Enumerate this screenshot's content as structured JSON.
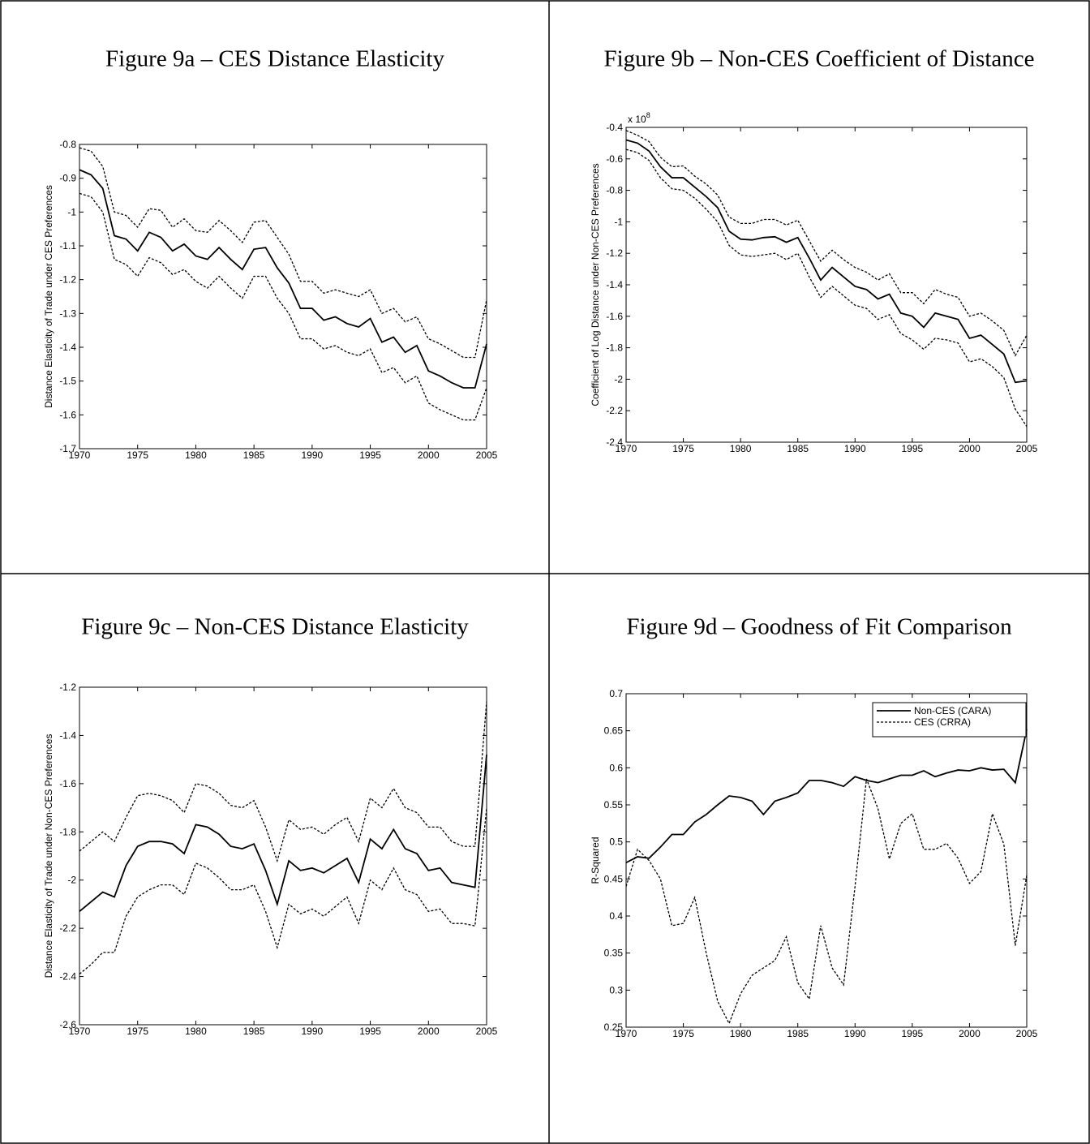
{
  "chart_data": [
    {
      "type": "line",
      "title": "Figure 9a – CES Distance Elasticity",
      "ylabel": "Distance Elasticity of Trade under CES Preferences",
      "x": [
        1970,
        1971,
        1972,
        1973,
        1974,
        1975,
        1976,
        1977,
        1978,
        1979,
        1980,
        1981,
        1982,
        1983,
        1984,
        1985,
        1986,
        1987,
        1988,
        1989,
        1990,
        1991,
        1992,
        1993,
        1994,
        1995,
        1996,
        1997,
        1998,
        1999,
        2000,
        2001,
        2002,
        2003,
        2004,
        2005
      ],
      "xlim": [
        1970,
        2005
      ],
      "xticks": [
        1970,
        1975,
        1980,
        1985,
        1990,
        1995,
        2000,
        2005
      ],
      "ylim": [
        -1.7,
        -0.8
      ],
      "yticks": [
        -0.8,
        -0.9,
        -1,
        -1.1,
        -1.2,
        -1.3,
        -1.4,
        -1.5,
        -1.6,
        -1.7
      ],
      "series": [
        {
          "color": "#000000",
          "style": "solid",
          "values": [
            -0.875,
            -0.89,
            -0.93,
            -1.07,
            -1.08,
            -1.115,
            -1.06,
            -1.075,
            -1.115,
            -1.095,
            -1.13,
            -1.14,
            -1.105,
            -1.14,
            -1.17,
            -1.11,
            -1.105,
            -1.165,
            -1.21,
            -1.285,
            -1.285,
            -1.32,
            -1.31,
            -1.33,
            -1.34,
            -1.315,
            -1.385,
            -1.37,
            -1.415,
            -1.395,
            -1.47,
            -1.485,
            -1.505,
            -1.52,
            -1.52,
            -1.39
          ]
        },
        {
          "color": "#000000",
          "style": "dashed",
          "values": [
            -0.81,
            -0.82,
            -0.865,
            -1.0,
            -1.01,
            -1.045,
            -0.99,
            -0.995,
            -1.045,
            -1.02,
            -1.055,
            -1.06,
            -1.025,
            -1.055,
            -1.09,
            -1.03,
            -1.025,
            -1.075,
            -1.125,
            -1.205,
            -1.205,
            -1.24,
            -1.23,
            -1.24,
            -1.25,
            -1.23,
            -1.3,
            -1.285,
            -1.325,
            -1.31,
            -1.375,
            -1.39,
            -1.41,
            -1.43,
            -1.43,
            -1.26
          ]
        },
        {
          "color": "#000000",
          "style": "dashed",
          "values": [
            -0.945,
            -0.955,
            -1.0,
            -1.14,
            -1.155,
            -1.19,
            -1.135,
            -1.15,
            -1.185,
            -1.17,
            -1.205,
            -1.225,
            -1.19,
            -1.225,
            -1.255,
            -1.19,
            -1.19,
            -1.255,
            -1.3,
            -1.375,
            -1.375,
            -1.405,
            -1.395,
            -1.415,
            -1.425,
            -1.405,
            -1.475,
            -1.46,
            -1.505,
            -1.485,
            -1.565,
            -1.585,
            -1.6,
            -1.615,
            -1.615,
            -1.52
          ]
        }
      ]
    },
    {
      "type": "line",
      "title": "Figure 9b – Non-CES Coefficient of Distance",
      "ylabel": "Coefficient of Log Distance under Non-CES Preferences",
      "multiplier": "x 10",
      "multiplier_exponent": "8",
      "x": [
        1970,
        1971,
        1972,
        1973,
        1974,
        1975,
        1976,
        1977,
        1978,
        1979,
        1980,
        1981,
        1982,
        1983,
        1984,
        1985,
        1986,
        1987,
        1988,
        1989,
        1990,
        1991,
        1992,
        1993,
        1994,
        1995,
        1996,
        1997,
        1998,
        1999,
        2000,
        2001,
        2002,
        2003,
        2004,
        2005
      ],
      "xlim": [
        1970,
        2005
      ],
      "xticks": [
        1970,
        1975,
        1980,
        1985,
        1990,
        1995,
        2000,
        2005
      ],
      "ylim": [
        -2.4,
        -0.4
      ],
      "yticks": [
        -0.4,
        -0.6,
        -0.8,
        -1,
        -1.2,
        -1.4,
        -1.6,
        -1.8,
        -2,
        -2.2,
        -2.4
      ],
      "series": [
        {
          "color": "#000000",
          "style": "solid",
          "values": [
            -0.48,
            -0.5,
            -0.55,
            -0.65,
            -0.72,
            -0.72,
            -0.78,
            -0.84,
            -0.91,
            -1.06,
            -1.11,
            -1.115,
            -1.1,
            -1.095,
            -1.13,
            -1.1,
            -1.23,
            -1.37,
            -1.29,
            -1.35,
            -1.41,
            -1.43,
            -1.49,
            -1.46,
            -1.58,
            -1.6,
            -1.67,
            -1.58,
            -1.6,
            -1.62,
            -1.74,
            -1.72,
            -1.78,
            -1.84,
            -2.02,
            -2.01
          ]
        },
        {
          "color": "#000000",
          "style": "dashed",
          "values": [
            -0.42,
            -0.45,
            -0.49,
            -0.59,
            -0.65,
            -0.645,
            -0.71,
            -0.76,
            -0.83,
            -0.97,
            -1.01,
            -1.01,
            -0.985,
            -0.985,
            -1.02,
            -0.99,
            -1.12,
            -1.25,
            -1.18,
            -1.24,
            -1.29,
            -1.32,
            -1.37,
            -1.33,
            -1.45,
            -1.45,
            -1.52,
            -1.43,
            -1.46,
            -1.48,
            -1.6,
            -1.58,
            -1.63,
            -1.69,
            -1.85,
            -1.72
          ]
        },
        {
          "color": "#000000",
          "style": "dashed",
          "values": [
            -0.54,
            -0.56,
            -0.61,
            -0.72,
            -0.79,
            -0.8,
            -0.85,
            -0.92,
            -1.0,
            -1.15,
            -1.21,
            -1.22,
            -1.21,
            -1.2,
            -1.24,
            -1.2,
            -1.35,
            -1.48,
            -1.41,
            -1.47,
            -1.53,
            -1.55,
            -1.62,
            -1.59,
            -1.71,
            -1.75,
            -1.81,
            -1.74,
            -1.75,
            -1.77,
            -1.89,
            -1.87,
            -1.92,
            -1.99,
            -2.19,
            -2.3
          ]
        }
      ]
    },
    {
      "type": "line",
      "title": "Figure 9c – Non-CES Distance Elasticity",
      "ylabel": "Distance Elasticity of Trade under Non-CES Preferences",
      "x": [
        1970,
        1971,
        1972,
        1973,
        1974,
        1975,
        1976,
        1977,
        1978,
        1979,
        1980,
        1981,
        1982,
        1983,
        1984,
        1985,
        1986,
        1987,
        1988,
        1989,
        1990,
        1991,
        1992,
        1993,
        1994,
        1995,
        1996,
        1997,
        1998,
        1999,
        2000,
        2001,
        2002,
        2003,
        2004,
        2005
      ],
      "xlim": [
        1970,
        2005
      ],
      "xticks": [
        1970,
        1975,
        1980,
        1985,
        1990,
        1995,
        2000,
        2005
      ],
      "ylim": [
        -2.6,
        -1.2
      ],
      "yticks": [
        -1.2,
        -1.4,
        -1.6,
        -1.8,
        -2,
        -2.2,
        -2.4,
        -2.6
      ],
      "series": [
        {
          "color": "#000000",
          "style": "solid",
          "values": [
            -2.13,
            -2.09,
            -2.05,
            -2.07,
            -1.94,
            -1.86,
            -1.84,
            -1.84,
            -1.85,
            -1.89,
            -1.77,
            -1.78,
            -1.81,
            -1.86,
            -1.87,
            -1.85,
            -1.96,
            -2.1,
            -1.92,
            -1.96,
            -1.95,
            -1.97,
            -1.94,
            -1.91,
            -2.01,
            -1.83,
            -1.87,
            -1.79,
            -1.87,
            -1.89,
            -1.96,
            -1.95,
            -2.01,
            -2.02,
            -2.03,
            -1.48
          ]
        },
        {
          "color": "#000000",
          "style": "dashed",
          "values": [
            -1.88,
            -1.84,
            -1.8,
            -1.84,
            -1.74,
            -1.65,
            -1.64,
            -1.65,
            -1.67,
            -1.72,
            -1.6,
            -1.61,
            -1.64,
            -1.69,
            -1.7,
            -1.67,
            -1.78,
            -1.92,
            -1.75,
            -1.79,
            -1.78,
            -1.81,
            -1.77,
            -1.74,
            -1.84,
            -1.66,
            -1.7,
            -1.62,
            -1.7,
            -1.72,
            -1.78,
            -1.78,
            -1.84,
            -1.86,
            -1.86,
            -1.26
          ]
        },
        {
          "color": "#000000",
          "style": "dashed",
          "values": [
            -2.39,
            -2.35,
            -2.3,
            -2.3,
            -2.15,
            -2.07,
            -2.04,
            -2.02,
            -2.02,
            -2.06,
            -1.93,
            -1.95,
            -1.99,
            -2.04,
            -2.04,
            -2.02,
            -2.13,
            -2.28,
            -2.1,
            -2.14,
            -2.12,
            -2.15,
            -2.11,
            -2.07,
            -2.18,
            -2.0,
            -2.04,
            -1.95,
            -2.04,
            -2.06,
            -2.13,
            -2.12,
            -2.18,
            -2.18,
            -2.19,
            -1.7
          ]
        }
      ]
    },
    {
      "type": "line",
      "title": "Figure 9d – Goodness of Fit Comparison",
      "ylabel": "R-Squared",
      "legend": "upper right",
      "x": [
        1970,
        1971,
        1972,
        1973,
        1974,
        1975,
        1976,
        1977,
        1978,
        1979,
        1980,
        1981,
        1982,
        1983,
        1984,
        1985,
        1986,
        1987,
        1988,
        1989,
        1990,
        1991,
        1992,
        1993,
        1994,
        1995,
        1996,
        1997,
        1998,
        1999,
        2000,
        2001,
        2002,
        2003,
        2004,
        2005
      ],
      "xlim": [
        1970,
        2005
      ],
      "xticks": [
        1970,
        1975,
        1980,
        1985,
        1990,
        1995,
        2000,
        2005
      ],
      "ylim": [
        0.25,
        0.7
      ],
      "yticks": [
        0.25,
        0.3,
        0.35,
        0.4,
        0.45,
        0.5,
        0.55,
        0.6,
        0.65,
        0.7
      ],
      "series": [
        {
          "name": "Non-CES (CARA)",
          "color": "#000000",
          "style": "solid",
          "values": [
            0.472,
            0.48,
            0.478,
            0.493,
            0.51,
            0.51,
            0.527,
            0.537,
            0.55,
            0.562,
            0.56,
            0.555,
            0.537,
            0.555,
            0.56,
            0.566,
            0.583,
            0.583,
            0.58,
            0.575,
            0.588,
            0.583,
            0.58,
            0.585,
            0.59,
            0.59,
            0.596,
            0.588,
            0.593,
            0.597,
            0.596,
            0.6,
            0.597,
            0.598,
            0.58,
            0.652
          ]
        },
        {
          "name": "CES (CRRA)",
          "color": "#000000",
          "style": "dashed",
          "values": [
            0.44,
            0.49,
            0.475,
            0.45,
            0.387,
            0.39,
            0.425,
            0.35,
            0.285,
            0.255,
            0.295,
            0.32,
            0.33,
            0.34,
            0.372,
            0.31,
            0.288,
            0.387,
            0.33,
            0.307,
            0.44,
            0.585,
            0.545,
            0.477,
            0.525,
            0.538,
            0.49,
            0.49,
            0.498,
            0.478,
            0.444,
            0.46,
            0.538,
            0.497,
            0.36,
            0.455
          ]
        }
      ]
    }
  ]
}
